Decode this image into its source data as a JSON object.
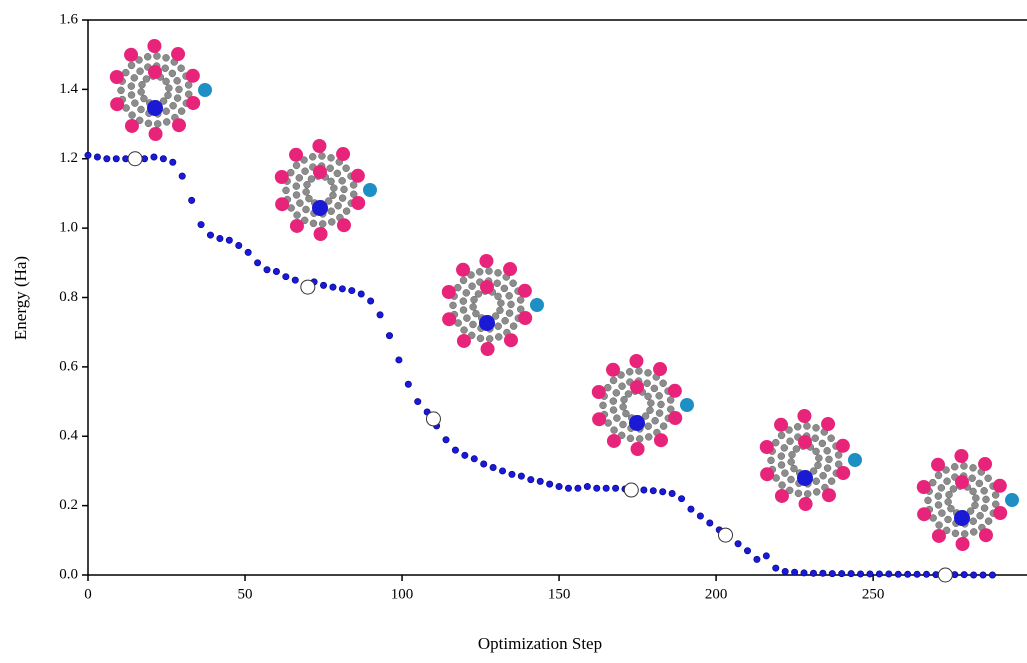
{
  "chart_data": {
    "type": "scatter",
    "xlabel": "Optimization Step",
    "ylabel": "Energy (Ha)",
    "xlim": [
      0,
      299
    ],
    "ylim": [
      0,
      1.6
    ],
    "xticks": [
      0,
      50,
      100,
      150,
      200,
      250
    ],
    "yticks": [
      {
        "value": 0,
        "label": "0.0"
      },
      0.2,
      0.4,
      0.6,
      0.8,
      {
        "value": 1,
        "label": "1.0"
      },
      1.2,
      1.4,
      1.6
    ],
    "color": "#1a1ad6",
    "x": [
      0,
      3,
      6,
      9,
      12,
      15,
      18,
      21,
      24,
      27,
      30,
      33,
      36,
      39,
      42,
      45,
      48,
      51,
      54,
      57,
      60,
      63,
      66,
      69,
      72,
      75,
      78,
      81,
      84,
      87,
      90,
      93,
      96,
      99,
      102,
      105,
      108,
      111,
      114,
      117,
      120,
      123,
      126,
      129,
      132,
      135,
      138,
      141,
      144,
      147,
      150,
      153,
      156,
      159,
      162,
      165,
      168,
      171,
      174,
      177,
      180,
      183,
      186,
      189,
      192,
      195,
      198,
      201,
      204,
      207,
      210,
      213,
      216,
      219,
      222,
      225,
      228,
      231,
      234,
      237,
      240,
      243,
      246,
      249,
      252,
      255,
      258,
      261,
      264,
      267,
      270,
      273,
      276,
      279,
      282,
      285,
      288
    ],
    "values": [
      1.21,
      1.205,
      1.2,
      1.2,
      1.2,
      1.2,
      1.2,
      1.205,
      1.2,
      1.19,
      1.15,
      1.08,
      1.01,
      0.98,
      0.97,
      0.965,
      0.95,
      0.93,
      0.9,
      0.88,
      0.875,
      0.86,
      0.85,
      0.835,
      0.845,
      0.835,
      0.83,
      0.825,
      0.82,
      0.81,
      0.79,
      0.75,
      0.69,
      0.62,
      0.55,
      0.5,
      0.47,
      0.43,
      0.39,
      0.36,
      0.345,
      0.335,
      0.32,
      0.31,
      0.3,
      0.29,
      0.285,
      0.275,
      0.27,
      0.262,
      0.255,
      0.25,
      0.25,
      0.255,
      0.25,
      0.25,
      0.25,
      0.248,
      0.245,
      0.245,
      0.243,
      0.24,
      0.235,
      0.22,
      0.19,
      0.17,
      0.15,
      0.13,
      0.11,
      0.09,
      0.07,
      0.045,
      0.055,
      0.02,
      0.01,
      0.008,
      0.006,
      0.005,
      0.005,
      0.004,
      0.004,
      0.004,
      0.003,
      0.003,
      0.003,
      0.003,
      0.002,
      0.002,
      0.002,
      0.002,
      0.001,
      0.001,
      0.001,
      0.001,
      0,
      0,
      0
    ],
    "highlights": {
      "x": [
        15,
        70,
        110,
        173,
        203,
        273
      ],
      "values": [
        1.2,
        0.83,
        0.45,
        0.245,
        0.115,
        0
      ]
    }
  }
}
